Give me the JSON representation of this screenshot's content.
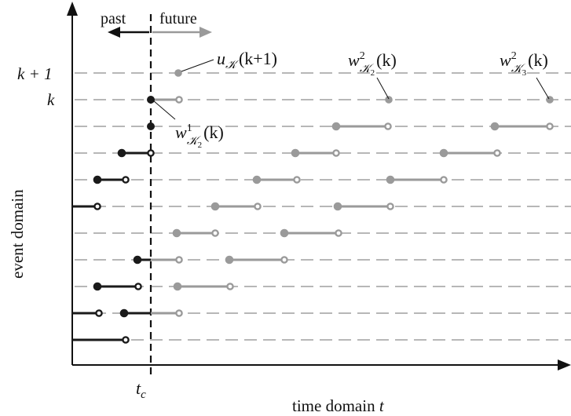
{
  "axes": {
    "y_label": "event domain",
    "x_label_text": "time domain ",
    "x_label_var": "t",
    "tc_main": "t",
    "tc_sub": "c"
  },
  "time_arrows": {
    "past": "past",
    "future": "future"
  },
  "level_labels": {
    "k_plus_1": "k + 1",
    "k": "k"
  },
  "annotations": {
    "u_main": "u",
    "u_sub": "𝒦",
    "u_arg": "(k+1)",
    "w1_main": "w",
    "w1_sup": "1",
    "w1_sub": "𝒦",
    "w1_subsub": "2",
    "w1_arg": "(k)",
    "w2a_main": "w",
    "w2a_sup": "2",
    "w2a_sub": "𝒦",
    "w2a_subsub": "2",
    "w2a_arg": "(k)",
    "w2b_main": "w",
    "w2b_sup": "2",
    "w2b_sub": "𝒦",
    "w2b_subsub": "3",
    "w2b_arg": "(k)"
  },
  "colors": {
    "past": "#1a1a1a",
    "future": "#9a9a9a",
    "dashes": "#8c8c8c",
    "axis": "#111111"
  }
}
